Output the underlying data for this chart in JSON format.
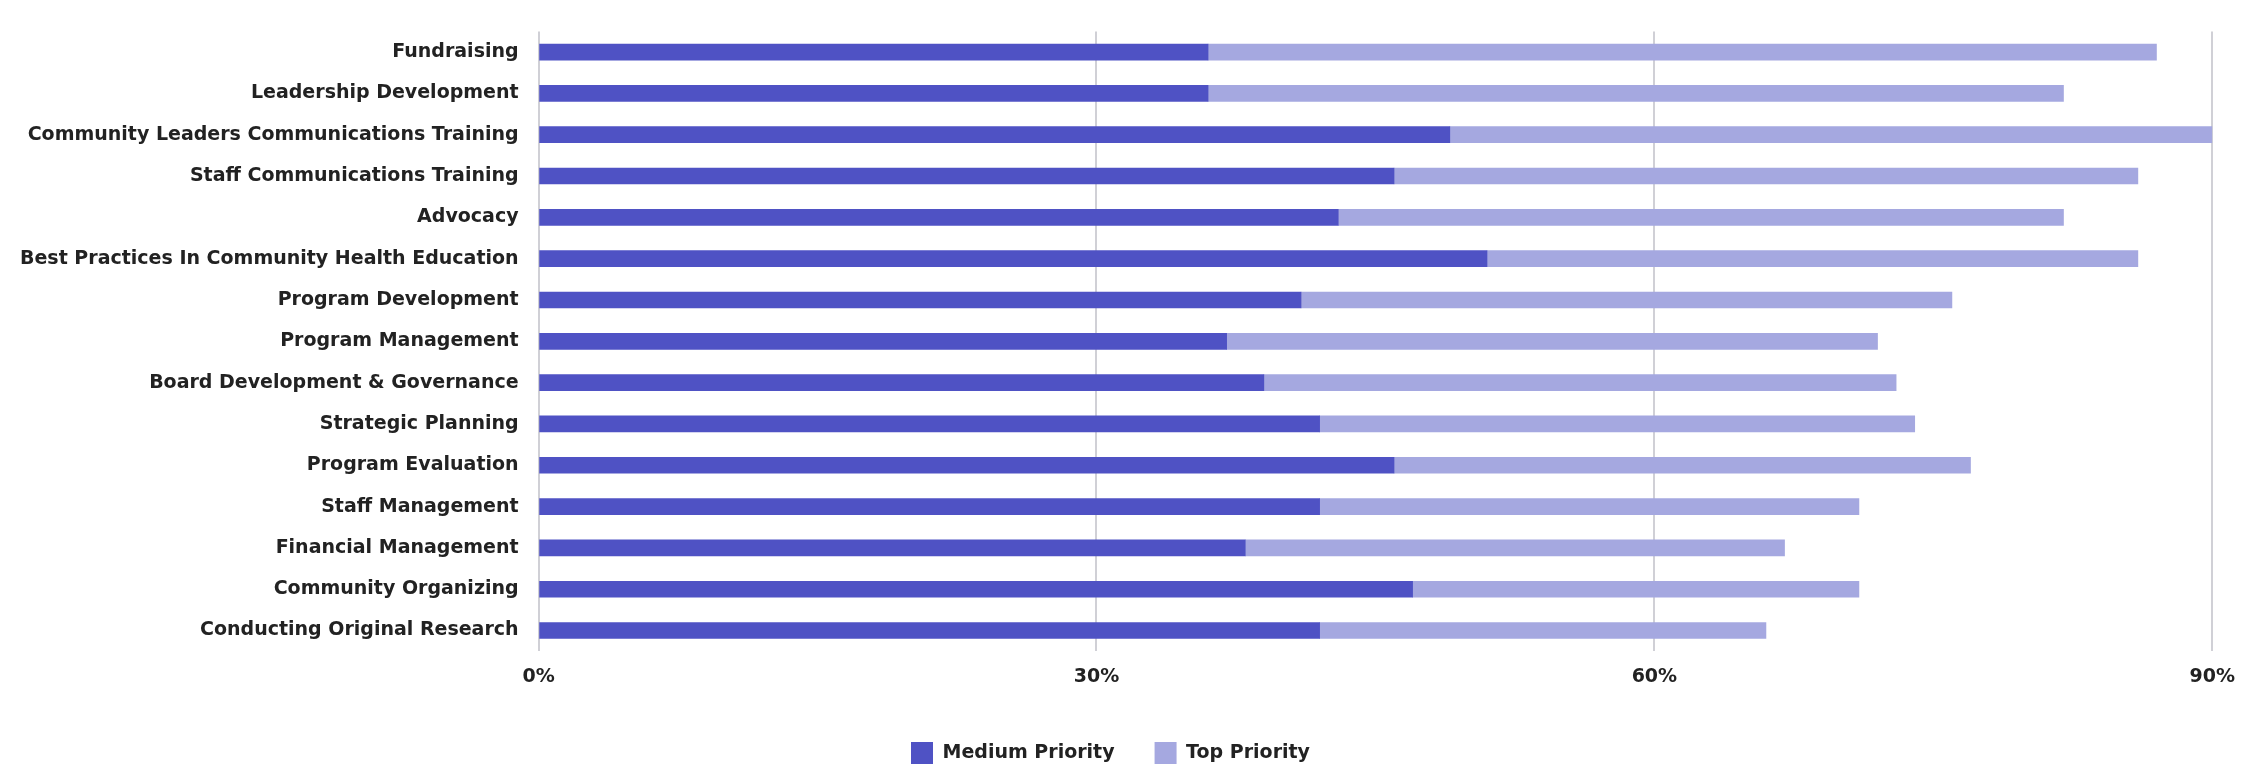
{
  "chart_data": {
    "type": "bar",
    "orientation": "horizontal",
    "stacked": true,
    "categories": [
      "Fundraising",
      "Leadership Development",
      "Community Leaders Communications Training",
      "Staff Communications Training",
      "Advocacy",
      "Best Practices In Community Health Education",
      "Program Development",
      "Program Management",
      "Board Development & Governance",
      "Strategic Planning",
      "Program Evaluation",
      "Staff Management",
      "Financial Management",
      "Community Organizing",
      "Conducting Original Research"
    ],
    "series": [
      {
        "name": "Medium Priority",
        "color": "#4f52c4",
        "values": [
          36,
          36,
          49,
          46,
          43,
          51,
          41,
          37,
          39,
          42,
          46,
          42,
          38,
          47,
          42
        ]
      },
      {
        "name": "Top Priority",
        "color": "#a5a8e0",
        "values": [
          51,
          46,
          41,
          40,
          39,
          35,
          35,
          35,
          34,
          32,
          31,
          29,
          29,
          24,
          24
        ]
      }
    ],
    "xlim": [
      0,
      90
    ],
    "xticks": [
      {
        "value": 0,
        "label": "0%"
      },
      {
        "value": 30,
        "label": "30%"
      },
      {
        "value": 60,
        "label": "60%"
      },
      {
        "value": 90,
        "label": "90%"
      }
    ],
    "grid": "x",
    "legend": "bottom"
  }
}
